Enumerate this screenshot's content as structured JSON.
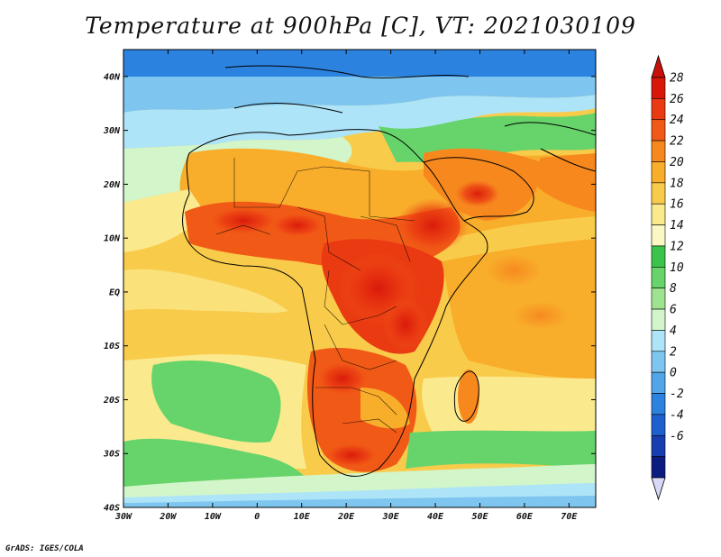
{
  "title": "Temperature at 900hPa [C], VT: 2021030109",
  "credit": "GrADS: IGES/COLA",
  "map": {
    "lon_range": [
      -30,
      76
    ],
    "lat_range": [
      -40,
      45
    ],
    "x_ticks": [
      "30W",
      "20W",
      "10W",
      "0",
      "10E",
      "20E",
      "30E",
      "40E",
      "50E",
      "60E",
      "70E"
    ],
    "x_tick_values": [
      -30,
      -20,
      -10,
      0,
      10,
      20,
      30,
      40,
      50,
      60,
      70
    ],
    "y_ticks": [
      "40N",
      "30N",
      "20N",
      "10N",
      "EQ",
      "10S",
      "20S",
      "30S",
      "40S"
    ],
    "y_tick_values": [
      40,
      30,
      20,
      10,
      0,
      -10,
      -20,
      -30,
      -40
    ]
  },
  "colorbar": {
    "labels": [
      "28",
      "26",
      "24",
      "22",
      "20",
      "18",
      "16",
      "14",
      "12",
      "10",
      "8",
      "6",
      "4",
      "2",
      "0",
      "-2",
      "-4",
      "-6"
    ],
    "colors": [
      "#d8170a",
      "#ea3a12",
      "#f15a16",
      "#f7881e",
      "#f8ad2b",
      "#f9cb4a",
      "#fbe98e",
      "#fbf8c3",
      "#3cc44a",
      "#66d46a",
      "#9ee490",
      "#d2f5ca",
      "#aee4f8",
      "#7ec6f0",
      "#52a5e8",
      "#2c82df",
      "#1f60cf",
      "#163eb0",
      "#0b1c80"
    ],
    "top_color": "#c8100a",
    "bottom_color": "#d8d8f8"
  }
}
